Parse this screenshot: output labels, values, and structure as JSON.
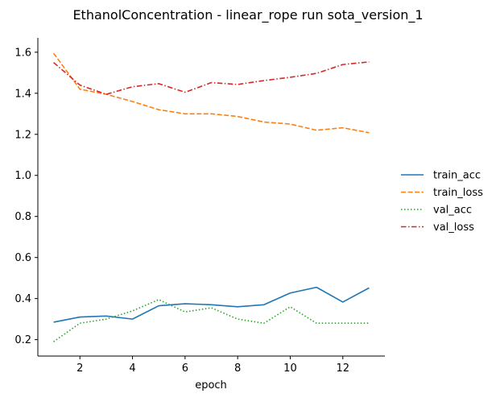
{
  "chart_data": {
    "type": "line",
    "title": "EthanolConcentration - linear_rope run sota_version_1",
    "xlabel": "epoch",
    "ylabel": "",
    "xlim": [
      0.4,
      13.6
    ],
    "ylim": [
      0.12,
      1.67
    ],
    "xticks": [
      2,
      4,
      6,
      8,
      10,
      12
    ],
    "yticks": [
      0.2,
      0.4,
      0.6,
      0.8,
      1.0,
      1.2,
      1.4,
      1.6
    ],
    "grid": false,
    "legend_position": "right",
    "x": [
      1,
      2,
      3,
      4,
      5,
      6,
      7,
      8,
      9,
      10,
      11,
      12,
      13
    ],
    "series": [
      {
        "name": "train_acc",
        "color": "#1f77b4",
        "dash": "solid",
        "values": [
          0.285,
          0.31,
          0.315,
          0.3,
          0.365,
          0.375,
          0.37,
          0.36,
          0.37,
          0.427,
          0.455,
          0.383,
          0.452
        ]
      },
      {
        "name": "train_loss",
        "color": "#ff7f0e",
        "dash": "dashed",
        "values": [
          1.595,
          1.42,
          1.395,
          1.36,
          1.32,
          1.3,
          1.3,
          1.287,
          1.26,
          1.25,
          1.22,
          1.232,
          1.208
        ]
      },
      {
        "name": "val_acc",
        "color": "#2ca02c",
        "dash": "dotted",
        "values": [
          0.19,
          0.28,
          0.3,
          0.34,
          0.395,
          0.335,
          0.355,
          0.3,
          0.28,
          0.36,
          0.28,
          0.28,
          0.28
        ]
      },
      {
        "name": "val_loss",
        "color": "#d62728",
        "dash": "dashdot",
        "values": [
          1.55,
          1.44,
          1.395,
          1.432,
          1.447,
          1.405,
          1.452,
          1.443,
          1.462,
          1.478,
          1.497,
          1.54,
          1.553
        ]
      }
    ]
  }
}
